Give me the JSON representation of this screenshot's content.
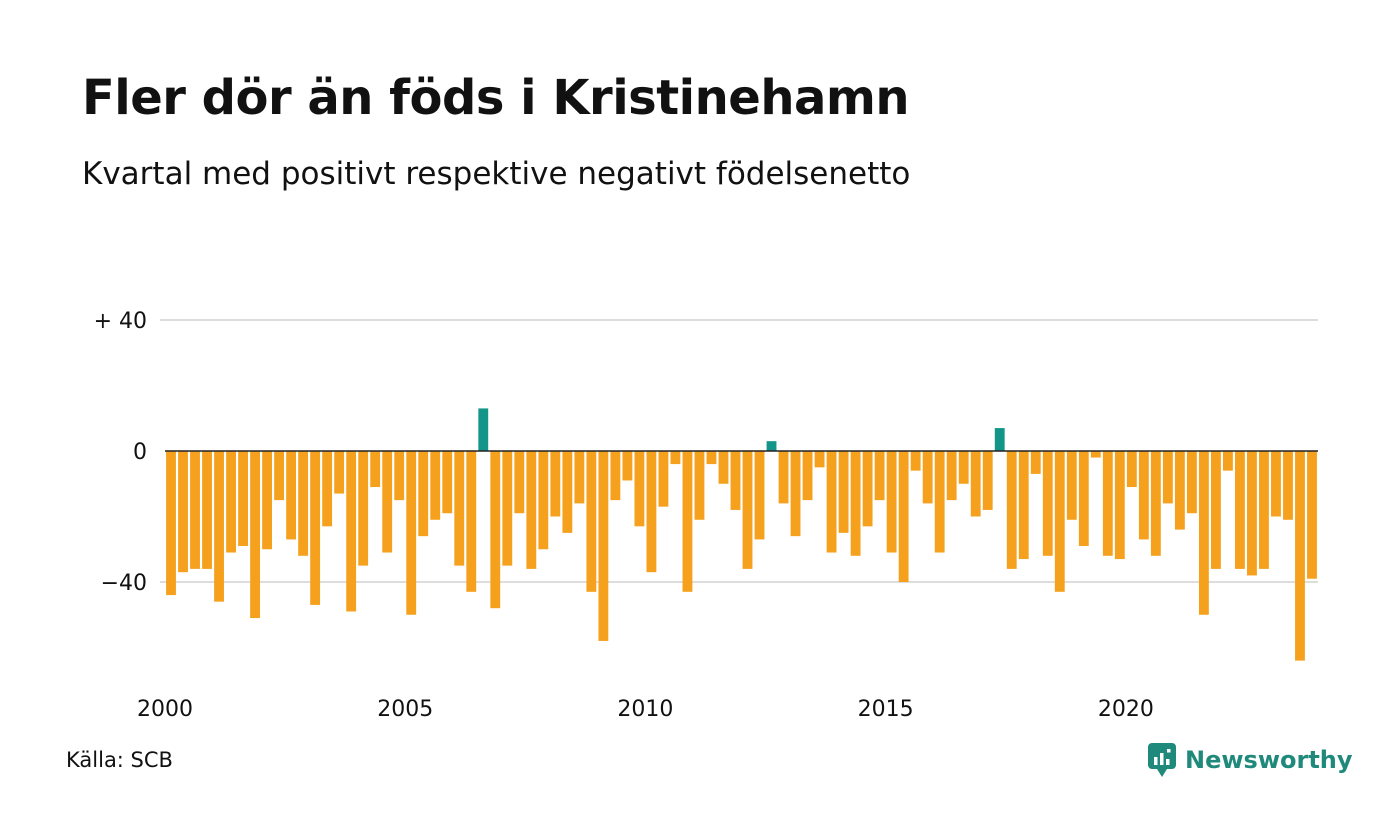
{
  "title": "Fler dör än föds i Kristinehamn",
  "subtitle": "Kvartal med positivt respektive negativt födelsenetto",
  "source": "Källa: SCB",
  "brand": "Newsworthy",
  "colors": {
    "positive": "#13958a",
    "negative": "#f5a11d",
    "grid": "#dddddd",
    "zero_line": "#222222",
    "brand": "#1f8a7c"
  },
  "chart_data": {
    "type": "bar",
    "ylim": [
      -70,
      42
    ],
    "yticks": [
      {
        "value": 40,
        "label": "+ 40"
      },
      {
        "value": 0,
        "label": "0"
      },
      {
        "value": -40,
        "label": "−40"
      }
    ],
    "xticks": [
      {
        "index": 0,
        "label": "2000"
      },
      {
        "index": 20,
        "label": "2005"
      },
      {
        "index": 40,
        "label": "2010"
      },
      {
        "index": 60,
        "label": "2015"
      },
      {
        "index": 80,
        "label": "2020"
      }
    ],
    "values": [
      -44,
      -37,
      -36,
      -36,
      -46,
      -31,
      -29,
      -51,
      -30,
      -15,
      -27,
      -32,
      -47,
      -23,
      -13,
      -49,
      -35,
      -11,
      -31,
      -15,
      -50,
      -26,
      -21,
      -19,
      -35,
      -43,
      13,
      -48,
      -35,
      -19,
      -36,
      -30,
      -20,
      -25,
      -16,
      -43,
      -58,
      -15,
      -9,
      -23,
      -37,
      -17,
      -4,
      -43,
      -21,
      -4,
      -10,
      -18,
      -36,
      -27,
      3,
      -16,
      -26,
      -15,
      -5,
      -31,
      -25,
      -32,
      -23,
      -15,
      -31,
      -40,
      -6,
      -16,
      -31,
      -15,
      -10,
      -20,
      -18,
      7,
      -36,
      -33,
      -7,
      -32,
      -43,
      -21,
      -29,
      -2,
      -32,
      -33,
      -11,
      -27,
      -32,
      -16,
      -24,
      -19,
      -50,
      -36,
      -6,
      -36,
      -38,
      -36,
      -20,
      -21,
      -64,
      -39
    ]
  }
}
